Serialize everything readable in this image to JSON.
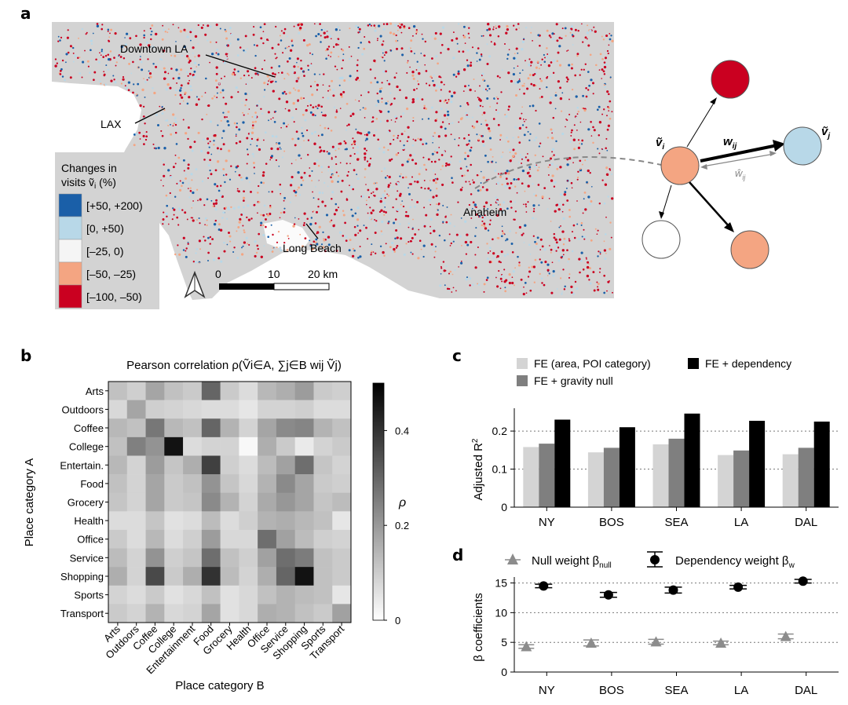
{
  "panels": {
    "a": {
      "letter": "a",
      "places": {
        "downtown": "Downtown LA",
        "lax": "LAX",
        "long_beach": "Long Beach",
        "anaheim": "Anaheim"
      },
      "legend": {
        "title_line1": "Changes in",
        "title_line2": "visits ṽ",
        "title_sub": "i",
        "title_unit": " (%)",
        "bins": [
          {
            "label": "[+50, +200)",
            "color": "#1a5fa8"
          },
          {
            "label": "[0, +50)",
            "color": "#b8d8e8"
          },
          {
            "label": "[–25, 0)",
            "color": "#f5f5f5"
          },
          {
            "label": "[–50, –25)",
            "color": "#f4a582"
          },
          {
            "label": "[–100, –50)",
            "color": "#ca0020"
          }
        ]
      },
      "scalebar": {
        "t0": "0",
        "t1": "10",
        "t2": "20 km"
      },
      "network": {
        "vi": "ṽ",
        "vi_sub": "i",
        "vj": "ṽ",
        "vj_sub": "j",
        "w": "w",
        "w_sub": "ij",
        "what": "ŵ",
        "what_sub": "ij"
      }
    },
    "b": {
      "letter": "b",
      "title": "Pearson correlation ρ(Ṽi∈A, ∑j∈B wij Ṽj)",
      "ylabel": "Place category A",
      "xlabel": "Place category B",
      "colorbar_label": "ρ",
      "colorbar_ticks": [
        "0.4",
        "0.2",
        "0"
      ]
    },
    "c": {
      "letter": "c",
      "legend": [
        "FE (area, POI category)",
        "FE + gravity null",
        "FE + dependency"
      ],
      "ylabel": "Adjusted R",
      "ylabel_sup": "2",
      "yticks": [
        "0",
        "0.1",
        "0.2"
      ]
    },
    "d": {
      "letter": "d",
      "legend_null": "Null weight β",
      "legend_null_sub": "null",
      "legend_dep": "Dependency weight β",
      "legend_dep_sub": "w",
      "ylabel": "β coefficients",
      "yticks": [
        "0",
        "5",
        "10",
        "15"
      ]
    }
  },
  "colors": {
    "map_bg": "#d3d3d3",
    "red": "#ca0020",
    "salmon": "#f4a582",
    "lightblue": "#b8d8e8",
    "blue": "#1a5fa8",
    "bar1": "#d4d4d4",
    "bar2": "#7f7f7f",
    "bar3": "#000000",
    "null_marker": "#8c8c8c"
  },
  "chart_data": [
    {
      "type": "heatmap",
      "rows": [
        "Arts",
        "Outdoors",
        "Coffee",
        "College",
        "Entertain.",
        "Food",
        "Grocery",
        "Health",
        "Office",
        "Service",
        "Shopping",
        "Sports",
        "Transport"
      ],
      "columns": [
        "Arts",
        "Outdoors",
        "Coffee",
        "College",
        "Entertainment",
        "Food",
        "Grocery",
        "Health",
        "Office",
        "Service",
        "Shopping",
        "Sports",
        "Transport"
      ],
      "values": [
        [
          0.12,
          0.09,
          0.18,
          0.12,
          0.1,
          0.32,
          0.1,
          0.06,
          0.14,
          0.16,
          0.2,
          0.1,
          0.09
        ],
        [
          0.07,
          0.18,
          0.09,
          0.08,
          0.07,
          0.06,
          0.06,
          0.04,
          0.08,
          0.08,
          0.09,
          0.06,
          0.06
        ],
        [
          0.14,
          0.12,
          0.28,
          0.14,
          0.12,
          0.32,
          0.15,
          0.08,
          0.18,
          0.24,
          0.25,
          0.15,
          0.12
        ],
        [
          0.12,
          0.26,
          0.22,
          0.5,
          0.06,
          0.08,
          0.08,
          0.0,
          0.16,
          0.1,
          0.03,
          0.08,
          0.1
        ],
        [
          0.14,
          0.08,
          0.2,
          0.11,
          0.16,
          0.4,
          0.09,
          0.06,
          0.13,
          0.19,
          0.3,
          0.11,
          0.08
        ],
        [
          0.12,
          0.08,
          0.18,
          0.1,
          0.12,
          0.22,
          0.11,
          0.07,
          0.15,
          0.24,
          0.18,
          0.1,
          0.09
        ],
        [
          0.11,
          0.08,
          0.18,
          0.1,
          0.11,
          0.24,
          0.15,
          0.08,
          0.17,
          0.21,
          0.18,
          0.11,
          0.13
        ],
        [
          0.06,
          0.06,
          0.11,
          0.05,
          0.06,
          0.13,
          0.06,
          0.09,
          0.15,
          0.16,
          0.14,
          0.12,
          0.04
        ],
        [
          0.1,
          0.06,
          0.14,
          0.06,
          0.09,
          0.2,
          0.07,
          0.07,
          0.3,
          0.19,
          0.13,
          0.09,
          0.08
        ],
        [
          0.13,
          0.08,
          0.22,
          0.09,
          0.11,
          0.3,
          0.12,
          0.09,
          0.19,
          0.3,
          0.27,
          0.12,
          0.1
        ],
        [
          0.16,
          0.08,
          0.38,
          0.1,
          0.16,
          0.43,
          0.13,
          0.08,
          0.16,
          0.32,
          0.55,
          0.12,
          0.1
        ],
        [
          0.08,
          0.06,
          0.1,
          0.05,
          0.07,
          0.12,
          0.05,
          0.07,
          0.12,
          0.15,
          0.13,
          0.12,
          0.04
        ],
        [
          0.1,
          0.08,
          0.15,
          0.07,
          0.08,
          0.18,
          0.05,
          0.07,
          0.16,
          0.15,
          0.12,
          0.1,
          0.19
        ]
      ],
      "colorbar_range": [
        0,
        0.5
      ]
    },
    {
      "type": "bar",
      "categories": [
        "NY",
        "BOS",
        "SEA",
        "LA",
        "DAL"
      ],
      "series": [
        {
          "name": "FE (area, POI category)",
          "values": [
            0.158,
            0.144,
            0.165,
            0.137,
            0.139
          ]
        },
        {
          "name": "FE + gravity null",
          "values": [
            0.167,
            0.156,
            0.18,
            0.149,
            0.156
          ]
        },
        {
          "name": "FE + dependency",
          "values": [
            0.23,
            0.21,
            0.246,
            0.227,
            0.225
          ]
        }
      ],
      "ylim": [
        0,
        0.26
      ]
    },
    {
      "type": "scatter",
      "categories": [
        "NY",
        "BOS",
        "SEA",
        "LA",
        "DAL"
      ],
      "series": [
        {
          "name": "Null weight βnull",
          "values": [
            4.3,
            4.9,
            5.1,
            4.9,
            6.0
          ],
          "err": [
            0.3,
            0.5,
            0.4,
            0.3,
            0.4
          ]
        },
        {
          "name": "Dependency weight βw",
          "values": [
            14.5,
            13.0,
            13.8,
            14.3,
            15.3
          ],
          "err": [
            0.3,
            0.4,
            0.5,
            0.3,
            0.3
          ]
        }
      ],
      "ylim": [
        0,
        16
      ]
    }
  ]
}
